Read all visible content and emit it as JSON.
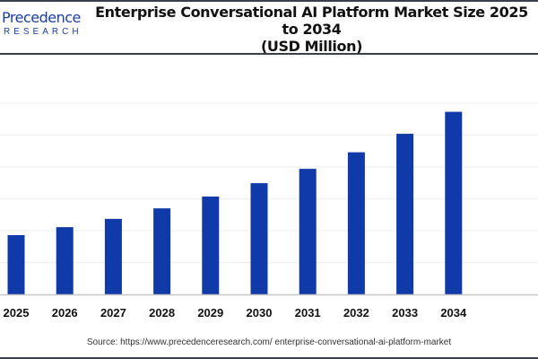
{
  "header": {
    "logo_line1": "Precedence",
    "logo_line2": "RESEARCH",
    "title_line1": "Enterprise Conversational AI Platform Market Size 2025 to 2034",
    "title_line2": "(USD Million)"
  },
  "source": "Source: https://www.precedenceresearch.com/ enterprise-conversational-ai-platform-market",
  "chart_data": {
    "type": "bar",
    "title": "Enterprise Conversational AI Platform Market Size 2025 to 2034 (USD Million)",
    "categories": [
      "2025",
      "2026",
      "2027",
      "2028",
      "2029",
      "2030",
      "2031",
      "2032",
      "2033",
      "2034"
    ],
    "values": [
      1.86,
      2.11,
      2.37,
      2.7,
      3.07,
      3.49,
      3.94,
      4.46,
      5.04,
      5.73
    ],
    "ylim": [
      0,
      6
    ],
    "grid": true,
    "bar_color": "#0f3aa8",
    "xlabel": "",
    "ylabel": ""
  }
}
